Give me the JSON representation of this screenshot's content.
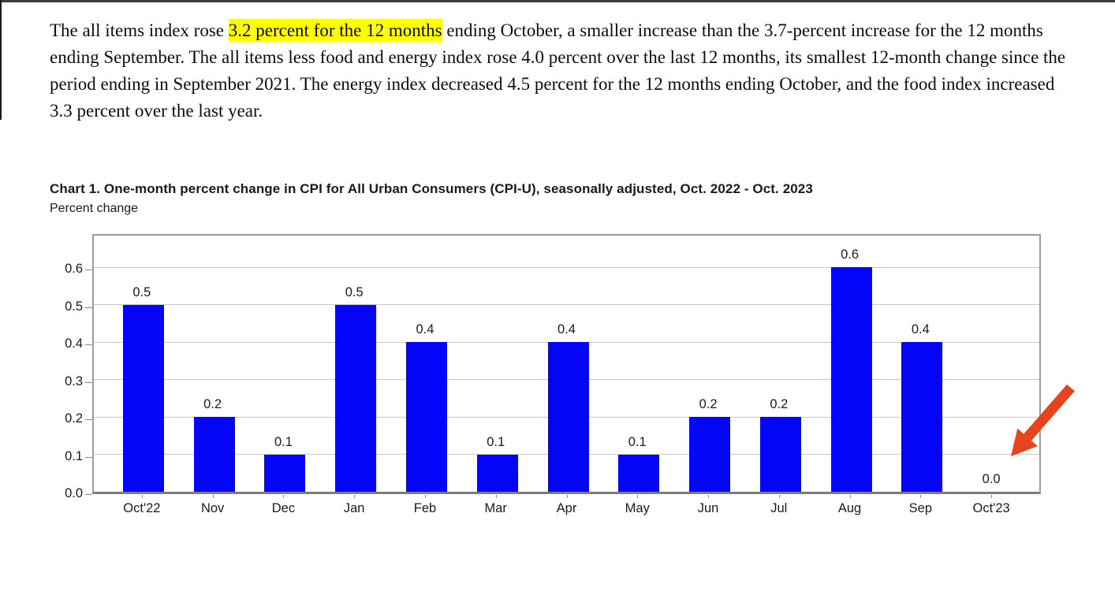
{
  "paragraph": {
    "pre_highlight": "The all items index rose ",
    "highlight": "3.2 percent for the 12 months",
    "post_highlight": " ending October, a smaller increase than the 3.7-percent increase for the 12 months ending September. The all items less food and energy index rose 4.0 percent over the last 12 months, its smallest 12-month change since the period ending in September 2021. The energy index decreased 4.5 percent for the 12 months ending October, and the food index increased 3.3 percent over the last year.",
    "highlight_color": "#ffff00"
  },
  "chart_data": {
    "type": "bar",
    "title": "Chart 1. One-month percent change in CPI for All Urban Consumers (CPI-U), seasonally adjusted, Oct. 2022 - Oct. 2023",
    "subtitle": "Percent change",
    "categories": [
      "Oct'22",
      "Nov",
      "Dec",
      "Jan",
      "Feb",
      "Mar",
      "Apr",
      "May",
      "Jun",
      "Jul",
      "Aug",
      "Sep",
      "Oct'23"
    ],
    "values": [
      0.5,
      0.2,
      0.1,
      0.5,
      0.4,
      0.1,
      0.4,
      0.1,
      0.2,
      0.2,
      0.6,
      0.4,
      0.0
    ],
    "data_labels": [
      "0.5",
      "0.2",
      "0.1",
      "0.5",
      "0.4",
      "0.1",
      "0.4",
      "0.1",
      "0.2",
      "0.2",
      "0.6",
      "0.4",
      "0.0"
    ],
    "yticks": [
      0.0,
      0.1,
      0.2,
      0.3,
      0.4,
      0.5,
      0.6
    ],
    "ytick_labels": [
      "0.0",
      "0.1",
      "0.2",
      "0.3",
      "0.4",
      "0.5",
      "0.6"
    ],
    "ylim": [
      0,
      0.695
    ],
    "grid": true,
    "legend": "none",
    "bar_color": "#0505fa",
    "annotation": {
      "shape": "arrow",
      "color": "#e6441e",
      "points_to_category": "Oct'23"
    }
  }
}
